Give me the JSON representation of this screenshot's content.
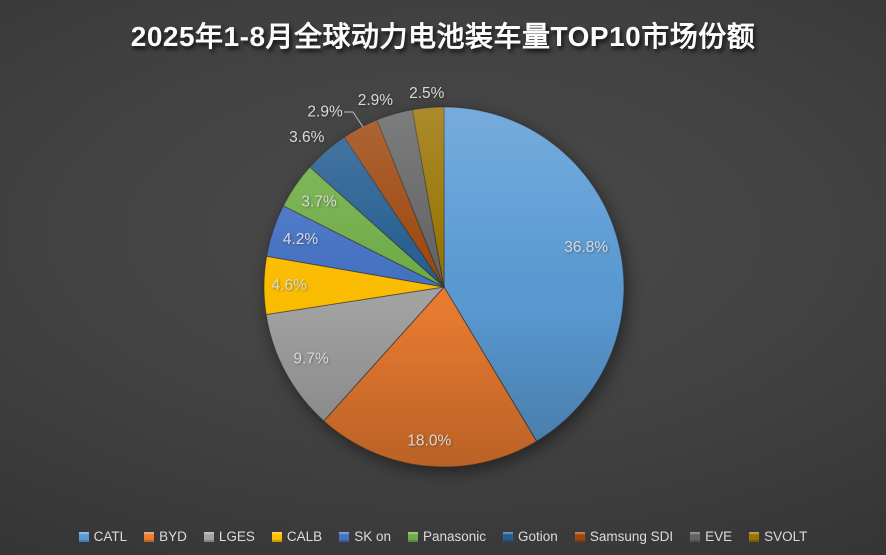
{
  "chart_data": {
    "type": "pie",
    "title": "2025年1-8月全球动力电池装车量TOP10市场份额",
    "units": "%",
    "legend_position": "bottom",
    "background_center_color": "#4b4b4b",
    "background_edge_color": "#242424",
    "data_label_color": "#d9d9d9",
    "pie_center": [
      444,
      287
    ],
    "pie_radius": 180,
    "start_angle_deg": 0,
    "slices_normalized_to_total": true,
    "slices": [
      {
        "name": "CATL",
        "value": 36.8,
        "label": "36.8%",
        "color": "#5B9BD5",
        "placement": "inside",
        "label_radius": 0.82
      },
      {
        "name": "BYD",
        "value": 18.0,
        "label": "18.0%",
        "color": "#ED7D31",
        "placement": "inside",
        "label_radius": 0.86
      },
      {
        "name": "LGES",
        "value": 9.7,
        "label": "9.7%",
        "color": "#A5A5A5",
        "placement": "inside",
        "label_radius": 0.84
      },
      {
        "name": "CALB",
        "value": 4.6,
        "label": "4.6%",
        "color": "#FFC000",
        "placement": "inside",
        "label_radius": 0.86
      },
      {
        "name": "SK on",
        "value": 4.2,
        "label": "4.2%",
        "color": "#4472C4",
        "placement": "inside",
        "label_radius": 0.84
      },
      {
        "name": "Panasonic",
        "value": 3.7,
        "label": "3.7%",
        "color": "#70AD47",
        "placement": "inside",
        "label_radius": 0.84
      },
      {
        "name": "Gotion",
        "value": 3.6,
        "label": "3.6%",
        "color": "#255E91",
        "placement": "outside",
        "label_radius": 1.13,
        "label_offset": [
          -4,
          4
        ]
      },
      {
        "name": "Samsung SDI",
        "value": 2.9,
        "label": "2.9%",
        "color": "#9E480E",
        "placement": "outside",
        "label_radius": 1.18,
        "label_offset": [
          -20,
          13
        ],
        "leader_points": [
          [
            344,
            112
          ],
          [
            353,
            112
          ],
          [
            363,
            127
          ]
        ]
      },
      {
        "name": "EVE",
        "value": 2.9,
        "label": "2.9%",
        "color": "#636363",
        "placement": "outside",
        "label_radius": 1.1,
        "label_offset": [
          -14,
          4
        ]
      },
      {
        "name": "SVOLT",
        "value": 2.5,
        "label": "2.5%",
        "color": "#997300",
        "placement": "outside",
        "label_radius": 1.08,
        "label_offset": [
          0,
          0
        ]
      }
    ]
  }
}
